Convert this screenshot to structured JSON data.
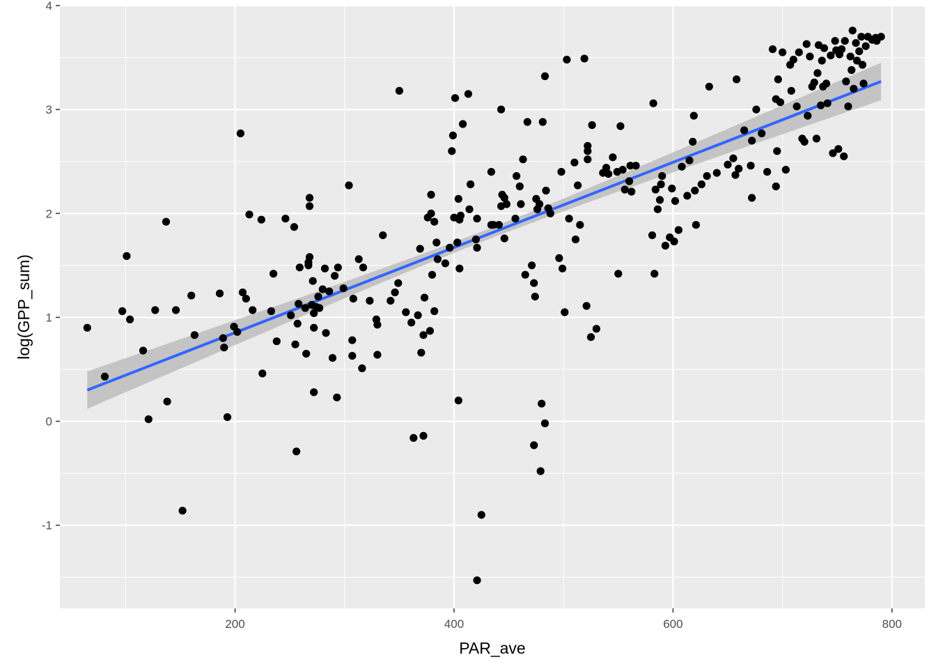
{
  "chart_data": {
    "type": "scatter",
    "title": "",
    "xlabel": "PAR_ave",
    "ylabel": "log(GPP_sum)",
    "xlim": [
      40,
      830
    ],
    "ylim": [
      -1.8,
      4.0
    ],
    "x_ticks": [
      200,
      400,
      600,
      800
    ],
    "y_ticks": [
      -1,
      0,
      1,
      2,
      3,
      4
    ],
    "x_tick_labels": [
      "200",
      "400",
      "600",
      "800"
    ],
    "y_tick_labels": [
      "-1",
      "0",
      "1",
      "2",
      "3",
      "4"
    ],
    "grid": true,
    "legend": "none",
    "colors": {
      "panel": "#ebebeb",
      "grid": "#ffffff",
      "points": "#000000",
      "fit_line": "#3366ff",
      "ribbon": "#bdbdbd"
    },
    "trend": {
      "method": "linear",
      "x": [
        65,
        790
      ],
      "y": [
        0.3,
        3.27
      ],
      "ci_half_width_ends": 0.18,
      "ci_half_width_mid": 0.05
    },
    "series": [
      {
        "points": [
          [
            65,
            0.9
          ],
          [
            81,
            0.43
          ],
          [
            97,
            1.06
          ],
          [
            101,
            1.59
          ],
          [
            104,
            0.98
          ],
          [
            116,
            0.68
          ],
          [
            121,
            0.02
          ],
          [
            127,
            1.07
          ],
          [
            137,
            1.92
          ],
          [
            138,
            0.19
          ],
          [
            146,
            1.07
          ],
          [
            152,
            -0.86
          ],
          [
            160,
            1.21
          ],
          [
            163,
            0.83
          ],
          [
            186,
            1.23
          ],
          [
            189,
            0.8
          ],
          [
            190,
            0.71
          ],
          [
            193,
            0.04
          ],
          [
            199,
            0.91
          ],
          [
            202,
            0.86
          ],
          [
            205,
            2.77
          ],
          [
            207,
            1.24
          ],
          [
            210,
            1.18
          ],
          [
            213,
            1.99
          ],
          [
            216,
            1.07
          ],
          [
            224,
            1.94
          ],
          [
            225,
            0.46
          ],
          [
            233,
            1.06
          ],
          [
            235,
            1.42
          ],
          [
            238,
            0.77
          ],
          [
            246,
            1.95
          ],
          [
            251,
            1.02
          ],
          [
            254,
            1.87
          ],
          [
            255,
            0.74
          ],
          [
            256,
            -0.29
          ],
          [
            257,
            0.94
          ],
          [
            258,
            1.13
          ],
          [
            259,
            1.48
          ],
          [
            264,
            1.09
          ],
          [
            265,
            0.65
          ],
          [
            267,
            1.5
          ],
          [
            267,
            1.53
          ],
          [
            268,
            1.58
          ],
          [
            268,
            2.07
          ],
          [
            268,
            2.15
          ],
          [
            270,
            1.12
          ],
          [
            271,
            1.35
          ],
          [
            272,
            1.04
          ],
          [
            272,
            0.9
          ],
          [
            272,
            0.28
          ],
          [
            274,
            1.1
          ],
          [
            276,
            1.2
          ],
          [
            277,
            1.09
          ],
          [
            280,
            1.27
          ],
          [
            282,
            1.47
          ],
          [
            283,
            0.85
          ],
          [
            286,
            1.25
          ],
          [
            289,
            0.61
          ],
          [
            291,
            1.4
          ],
          [
            293,
            0.23
          ],
          [
            294,
            1.48
          ],
          [
            299,
            1.28
          ],
          [
            304,
            2.27
          ],
          [
            307,
            0.78
          ],
          [
            307,
            0.63
          ],
          [
            308,
            1.18
          ],
          [
            313,
            1.56
          ],
          [
            316,
            0.51
          ],
          [
            317,
            1.48
          ],
          [
            323,
            1.16
          ],
          [
            329,
            0.98
          ],
          [
            330,
            0.64
          ],
          [
            330,
            0.93
          ],
          [
            335,
            1.79
          ],
          [
            342,
            1.16
          ],
          [
            346,
            1.24
          ],
          [
            349,
            1.33
          ],
          [
            350,
            3.18
          ],
          [
            356,
            1.05
          ],
          [
            361,
            0.95
          ],
          [
            363,
            -0.16
          ],
          [
            367,
            1.02
          ],
          [
            369,
            1.66
          ],
          [
            370,
            0.66
          ],
          [
            372,
            0.83
          ],
          [
            372,
            -0.14
          ],
          [
            373,
            1.19
          ],
          [
            376,
            1.96
          ],
          [
            378,
            0.87
          ],
          [
            379,
            2.0
          ],
          [
            379,
            2.18
          ],
          [
            380,
            1.41
          ],
          [
            382,
            1.06
          ],
          [
            382,
            1.92
          ],
          [
            384,
            1.72
          ],
          [
            385,
            1.56
          ],
          [
            392,
            1.52
          ],
          [
            396,
            1.67
          ],
          [
            398,
            2.6
          ],
          [
            399,
            2.75
          ],
          [
            400,
            1.96
          ],
          [
            401,
            3.11
          ],
          [
            403,
            1.72
          ],
          [
            404,
            0.2
          ],
          [
            404,
            2.14
          ],
          [
            405,
            1.47
          ],
          [
            405,
            1.94
          ],
          [
            406,
            1.98
          ],
          [
            408,
            2.86
          ],
          [
            413,
            3.15
          ],
          [
            414,
            2.04
          ],
          [
            415,
            2.28
          ],
          [
            420,
            1.75
          ],
          [
            421,
            1.95
          ],
          [
            421,
            1.67
          ],
          [
            421,
            -1.53
          ],
          [
            425,
            -0.9
          ],
          [
            434,
            1.89
          ],
          [
            434,
            2.4
          ],
          [
            436,
            1.89
          ],
          [
            441,
            1.89
          ],
          [
            443,
            3.0
          ],
          [
            443,
            2.07
          ],
          [
            444,
            2.18
          ],
          [
            446,
            2.15
          ],
          [
            446,
            1.76
          ],
          [
            448,
            2.09
          ],
          [
            456,
            1.95
          ],
          [
            457,
            2.36
          ],
          [
            460,
            2.26
          ],
          [
            461,
            2.09
          ],
          [
            463,
            2.52
          ],
          [
            465,
            1.41
          ],
          [
            467,
            2.88
          ],
          [
            471,
            1.5
          ],
          [
            473,
            1.33
          ],
          [
            473,
            -0.23
          ],
          [
            474,
            1.2
          ],
          [
            475,
            2.14
          ],
          [
            476,
            2.04
          ],
          [
            478,
            2.09
          ],
          [
            479,
            -0.48
          ],
          [
            480,
            0.17
          ],
          [
            481,
            2.88
          ],
          [
            483,
            3.32
          ],
          [
            483,
            -0.02
          ],
          [
            484,
            2.22
          ],
          [
            486,
            2.05
          ],
          [
            488,
            2.0
          ],
          [
            496,
            1.57
          ],
          [
            498,
            2.4
          ],
          [
            499,
            1.47
          ],
          [
            501,
            1.05
          ],
          [
            503,
            3.48
          ],
          [
            505,
            1.95
          ],
          [
            510,
            2.49
          ],
          [
            511,
            1.75
          ],
          [
            513,
            2.27
          ],
          [
            515,
            1.89
          ],
          [
            519,
            3.49
          ],
          [
            521,
            1.11
          ],
          [
            522,
            2.65
          ],
          [
            522,
            2.6
          ],
          [
            522,
            2.52
          ],
          [
            525,
            0.81
          ],
          [
            526,
            2.85
          ],
          [
            530,
            0.89
          ],
          [
            536,
            2.39
          ],
          [
            539,
            2.44
          ],
          [
            541,
            2.38
          ],
          [
            545,
            2.54
          ],
          [
            549,
            2.4
          ],
          [
            550,
            1.42
          ],
          [
            552,
            2.84
          ],
          [
            554,
            2.42
          ],
          [
            556,
            2.23
          ],
          [
            560,
            2.31
          ],
          [
            561,
            2.46
          ],
          [
            562,
            2.21
          ],
          [
            566,
            2.46
          ],
          [
            581,
            1.79
          ],
          [
            582,
            3.06
          ],
          [
            583,
            1.42
          ],
          [
            584,
            2.23
          ],
          [
            586,
            2.04
          ],
          [
            588,
            2.13
          ],
          [
            589,
            2.28
          ],
          [
            590,
            2.36
          ],
          [
            593,
            1.69
          ],
          [
            597,
            1.77
          ],
          [
            599,
            2.24
          ],
          [
            601,
            1.73
          ],
          [
            602,
            2.12
          ],
          [
            605,
            1.84
          ],
          [
            608,
            2.45
          ],
          [
            613,
            2.17
          ],
          [
            615,
            2.51
          ],
          [
            618,
            2.69
          ],
          [
            619,
            2.94
          ],
          [
            620,
            2.22
          ],
          [
            621,
            1.89
          ],
          [
            626,
            2.28
          ],
          [
            631,
            2.36
          ],
          [
            633,
            3.22
          ],
          [
            640,
            2.39
          ],
          [
            650,
            2.47
          ],
          [
            655,
            2.53
          ],
          [
            657,
            2.37
          ],
          [
            658,
            3.29
          ],
          [
            660,
            2.43
          ],
          [
            665,
            2.8
          ],
          [
            671,
            2.46
          ],
          [
            672,
            2.7
          ],
          [
            672,
            2.15
          ],
          [
            676,
            3.0
          ],
          [
            681,
            2.77
          ],
          [
            686,
            2.4
          ],
          [
            691,
            3.58
          ],
          [
            694,
            2.26
          ],
          [
            694,
            3.1
          ],
          [
            695,
            2.6
          ],
          [
            696,
            3.29
          ],
          [
            698,
            3.07
          ],
          [
            700,
            3.55
          ],
          [
            703,
            2.42
          ],
          [
            707,
            3.43
          ],
          [
            708,
            3.18
          ],
          [
            710,
            3.48
          ],
          [
            713,
            3.03
          ],
          [
            715,
            3.55
          ],
          [
            718,
            2.72
          ],
          [
            720,
            2.69
          ],
          [
            722,
            3.63
          ],
          [
            723,
            2.94
          ],
          [
            725,
            3.51
          ],
          [
            727,
            3.22
          ],
          [
            729,
            3.26
          ],
          [
            731,
            2.72
          ],
          [
            732,
            3.35
          ],
          [
            733,
            3.62
          ],
          [
            735,
            3.04
          ],
          [
            736,
            3.47
          ],
          [
            737,
            3.22
          ],
          [
            738,
            3.59
          ],
          [
            740,
            3.25
          ],
          [
            741,
            3.06
          ],
          [
            744,
            3.52
          ],
          [
            746,
            2.58
          ],
          [
            748,
            3.66
          ],
          [
            749,
            3.57
          ],
          [
            751,
            2.62
          ],
          [
            752,
            3.53
          ],
          [
            754,
            3.58
          ],
          [
            756,
            2.55
          ],
          [
            757,
            3.66
          ],
          [
            758,
            3.27
          ],
          [
            760,
            3.03
          ],
          [
            762,
            3.51
          ],
          [
            763,
            3.38
          ],
          [
            764,
            3.76
          ],
          [
            765,
            3.2
          ],
          [
            767,
            3.64
          ],
          [
            768,
            3.47
          ],
          [
            770,
            3.56
          ],
          [
            772,
            3.7
          ],
          [
            773,
            3.43
          ],
          [
            774,
            3.25
          ],
          [
            776,
            3.61
          ],
          [
            778,
            3.7
          ],
          [
            782,
            3.67
          ],
          [
            785,
            3.69
          ],
          [
            786,
            3.66
          ],
          [
            790,
            3.7
          ]
        ]
      }
    ]
  }
}
